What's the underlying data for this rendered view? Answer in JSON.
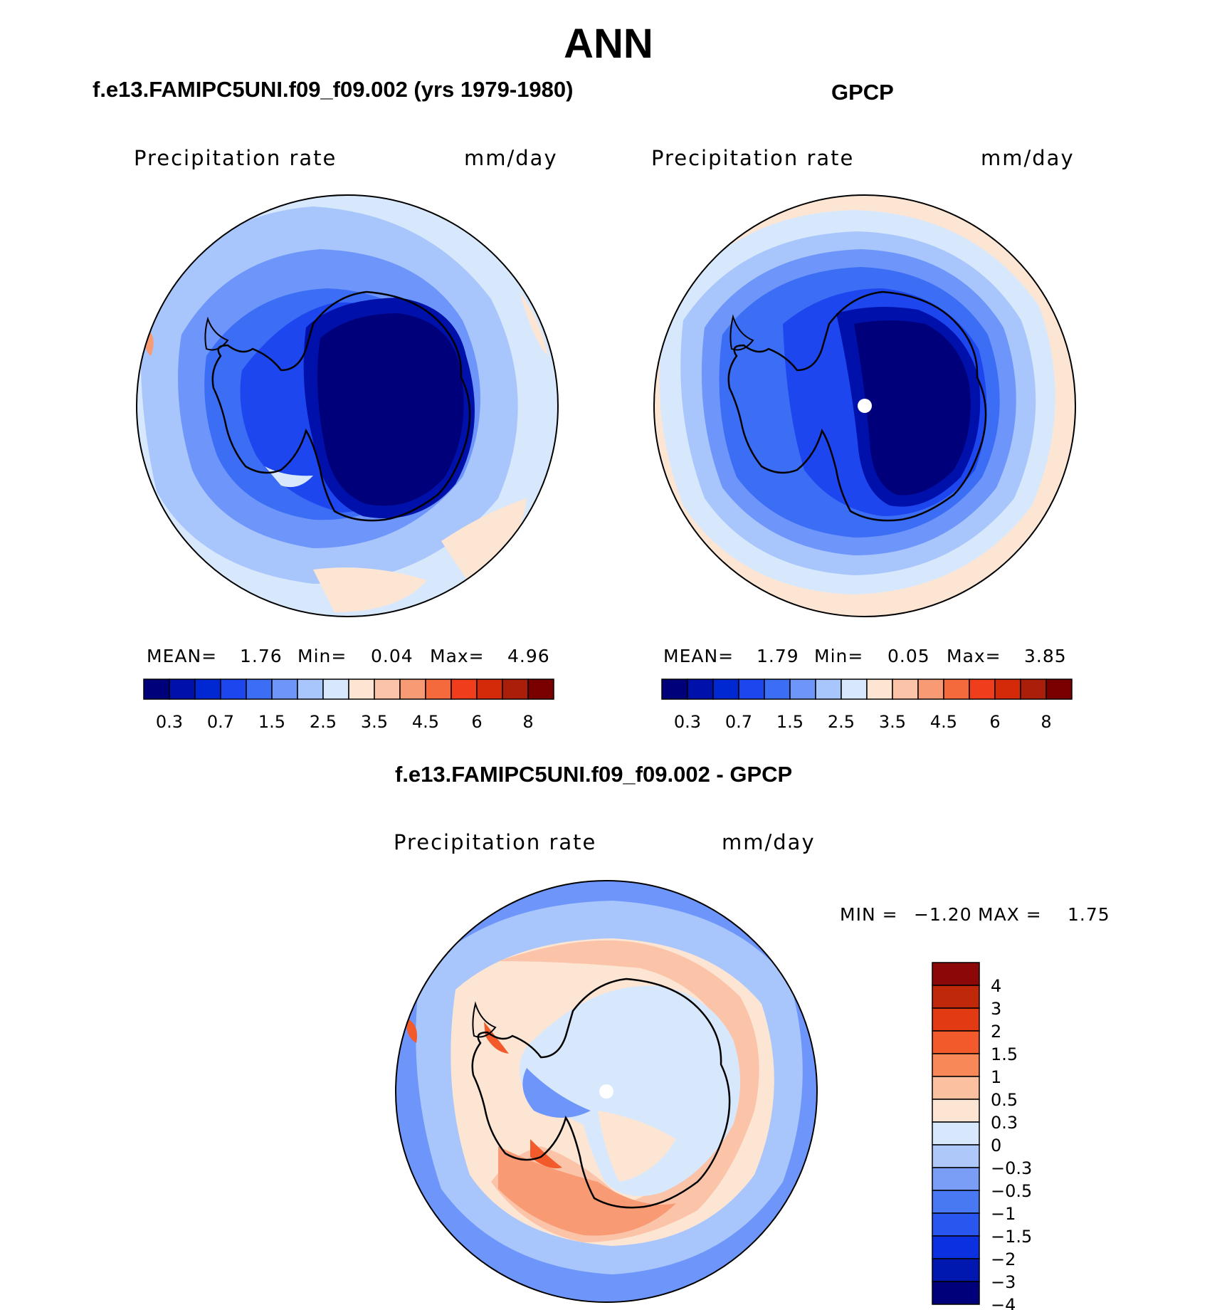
{
  "figure": {
    "season": "ANN"
  },
  "panels": [
    {
      "title": "f.e13.FAMIPC5UNI.f09_f09.002 (yrs 1979-1980)",
      "left_label": "Precipitation rate",
      "right_label": "mm/day",
      "stats": {
        "mean_label": "MEAN=",
        "mean": "1.76",
        "min_label": "Min=",
        "min": "0.04",
        "max_label": "Max=",
        "max": "4.96"
      }
    },
    {
      "title": "GPCP",
      "left_label": "Precipitation rate",
      "right_label": "mm/day",
      "stats": {
        "mean_label": "MEAN=",
        "mean": "1.79",
        "min_label": "Min=",
        "min": "0.05",
        "max_label": "Max=",
        "max": "3.85"
      }
    },
    {
      "title": "f.e13.FAMIPC5UNI.f09_f09.002 - GPCP",
      "left_label": "Precipitation rate",
      "right_label": "mm/day",
      "stats": {
        "min_label": "MIN =",
        "min": "−1.20",
        "max_label": "MAX =",
        "max": "1.75"
      }
    }
  ],
  "colorbar_field": {
    "colors": [
      "#00007a",
      "#0010aa",
      "#0028d2",
      "#1e46ee",
      "#3c6ef5",
      "#6e96fa",
      "#a8c6fb",
      "#d7e8fc",
      "#fde5d4",
      "#fbc4a8",
      "#f89a74",
      "#f56a3c",
      "#f03e1c",
      "#d42a0a",
      "#aa1e0a",
      "#7a0000"
    ],
    "labels": [
      "0.3",
      "0.7",
      "1.5",
      "2.5",
      "3.5",
      "4.5",
      "6",
      "8"
    ]
  },
  "colorbar_diff": {
    "colors": [
      "#00007a",
      "#0018b0",
      "#0a30e0",
      "#2a56f0",
      "#4878f2",
      "#7a9ef6",
      "#aec8fa",
      "#d7e8fc",
      "#fde5d4",
      "#fbc0a0",
      "#f88858",
      "#f25a2c",
      "#e23a12",
      "#c0280a",
      "#8c0808"
    ],
    "labels": [
      "4",
      "3",
      "2",
      "1.5",
      "1",
      "0.5",
      "0.3",
      "0",
      "−0.3",
      "−0.5",
      "−1",
      "−1.5",
      "−2",
      "−3",
      "−4"
    ]
  },
  "map_colors": {
    "antarctica_deep": "#00007a",
    "coastal_blue": "#1e46ee",
    "ocean_mid": "#6e96fa",
    "ocean_light": "#a8c6fb",
    "ocean_pale": "#d7e8fc",
    "warm_pale": "#fde5d4",
    "warm": "#fbc4a8",
    "diff_warm": "#f89a74",
    "diff_red": "#f25a2c"
  }
}
